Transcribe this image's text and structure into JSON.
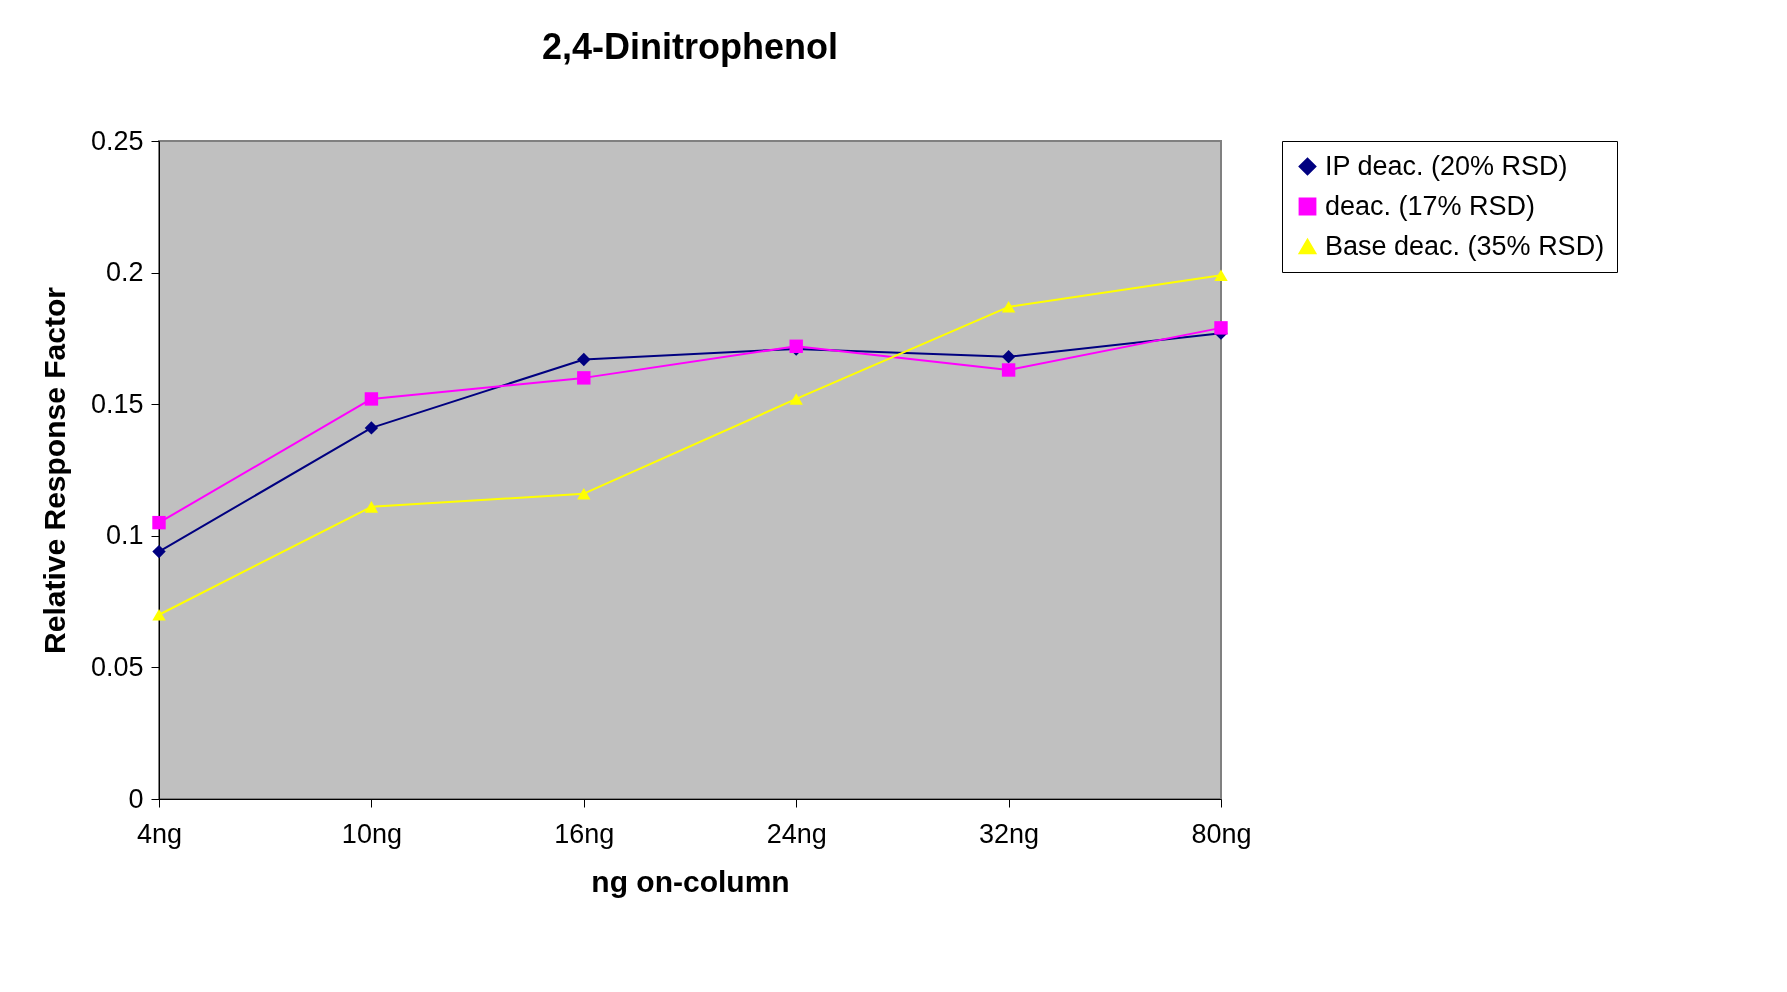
{
  "chart_data": {
    "type": "line",
    "title": "2,4-Dinitrophenol",
    "xlabel": "ng on-column",
    "ylabel": "Relative Response Factor",
    "categories": [
      "4ng",
      "10ng",
      "16ng",
      "24ng",
      "32ng",
      "80ng"
    ],
    "series": [
      {
        "name": "IP deac. (20% RSD)",
        "color": "#000080",
        "marker": "diamond",
        "values": [
          0.094,
          0.141,
          0.167,
          0.171,
          0.168,
          0.177
        ]
      },
      {
        "name": "deac. (17% RSD)",
        "color": "#ff00ff",
        "marker": "square",
        "values": [
          0.105,
          0.152,
          0.16,
          0.172,
          0.163,
          0.179
        ]
      },
      {
        "name": "Base deac. (35% RSD)",
        "color": "#ffff00",
        "marker": "triangle",
        "values": [
          0.07,
          0.111,
          0.116,
          0.152,
          0.187,
          0.199
        ]
      }
    ],
    "ylim": [
      0,
      0.25
    ],
    "yticks": [
      0,
      0.05,
      0.1,
      0.15,
      0.2,
      0.25
    ],
    "grid": false,
    "legend": "right"
  }
}
